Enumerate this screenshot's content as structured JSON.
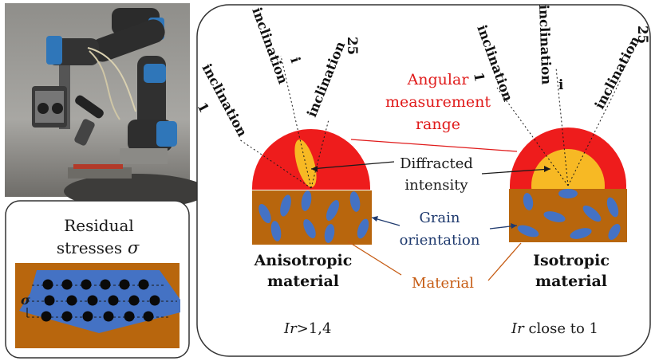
{
  "photo": {
    "caption": ""
  },
  "residual": {
    "line1": "Residual",
    "line2": "stresses",
    "symbol": "σ",
    "sigma_label": "σ"
  },
  "inclinations": {
    "left": [
      "inclination 1",
      "inclination i",
      "inclination 25"
    ],
    "right": [
      "inclination 1",
      "inclination i",
      "inclination 25"
    ],
    "word": "inclination",
    "idx1": "1",
    "idxi": "i",
    "idx25": "25"
  },
  "labels": {
    "angular_line1": "Angular",
    "angular_line2": "measurement",
    "angular_line3": "range",
    "diffracted_line1": "Diffracted",
    "diffracted_line2": "intensity",
    "grain_line1": "Grain",
    "grain_line2": "orientation",
    "material": "Material"
  },
  "left_material": {
    "line1": "Anisotropic",
    "line2": "material",
    "ir_symbol": "Ir",
    "ir_value": ">1,4"
  },
  "right_material": {
    "line1": "Isotropic",
    "line2": "material",
    "ir_symbol": "Ir",
    "ir_value": " close to 1"
  },
  "colors": {
    "range": "#ee1c1c",
    "intensity": "#f7b924",
    "material": "#b8660d",
    "grain": "#4472c4",
    "angular_text": "#e01b1b",
    "grain_text": "#1f3a6e",
    "material_text": "#c55a11"
  }
}
